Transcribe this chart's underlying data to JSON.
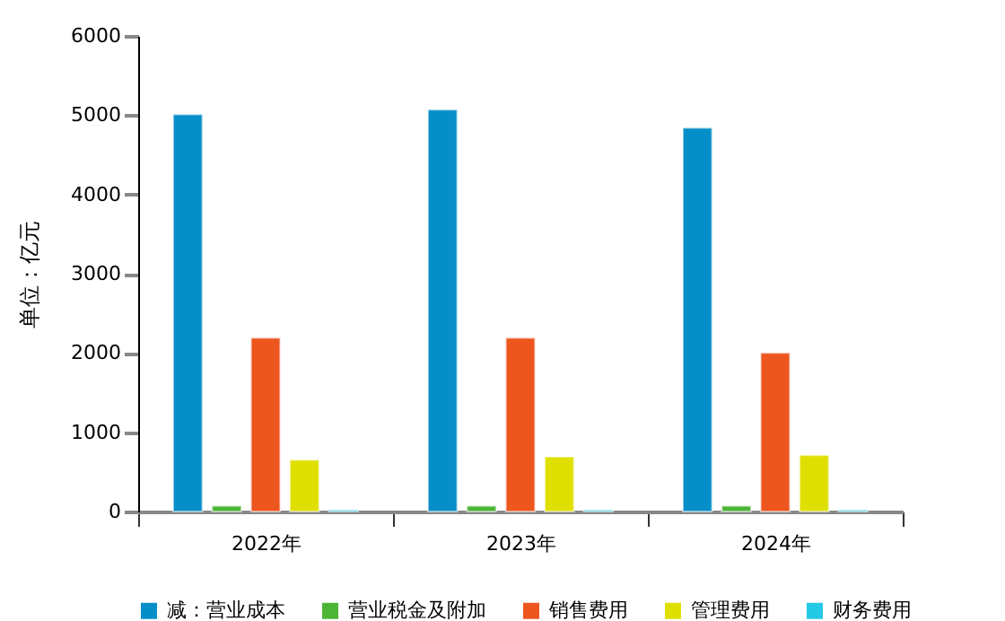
{
  "chart_data": {
    "type": "bar",
    "ylabel": "单位：亿元",
    "categories": [
      "2022年",
      "2023年",
      "2024年"
    ],
    "series": [
      {
        "name": "减：营业成本",
        "color": "#068ec9",
        "values": [
          5010,
          5070,
          4840
        ]
      },
      {
        "name": "营业税金及附加",
        "color": "#4db536",
        "values": [
          70,
          70,
          70
        ]
      },
      {
        "name": "销售费用",
        "color": "#ee561f",
        "values": [
          2190,
          2190,
          2000
        ]
      },
      {
        "name": "管理费用",
        "color": "#dfdf00",
        "values": [
          650,
          690,
          710
        ]
      },
      {
        "name": "财务费用",
        "color": "#24c9e5",
        "values": [
          20,
          20,
          20
        ]
      }
    ],
    "ylim": [
      0,
      6000
    ],
    "yticks": [
      0,
      1000,
      2000,
      3000,
      4000,
      5000,
      6000
    ],
    "grid": false,
    "legend": "bottom"
  }
}
